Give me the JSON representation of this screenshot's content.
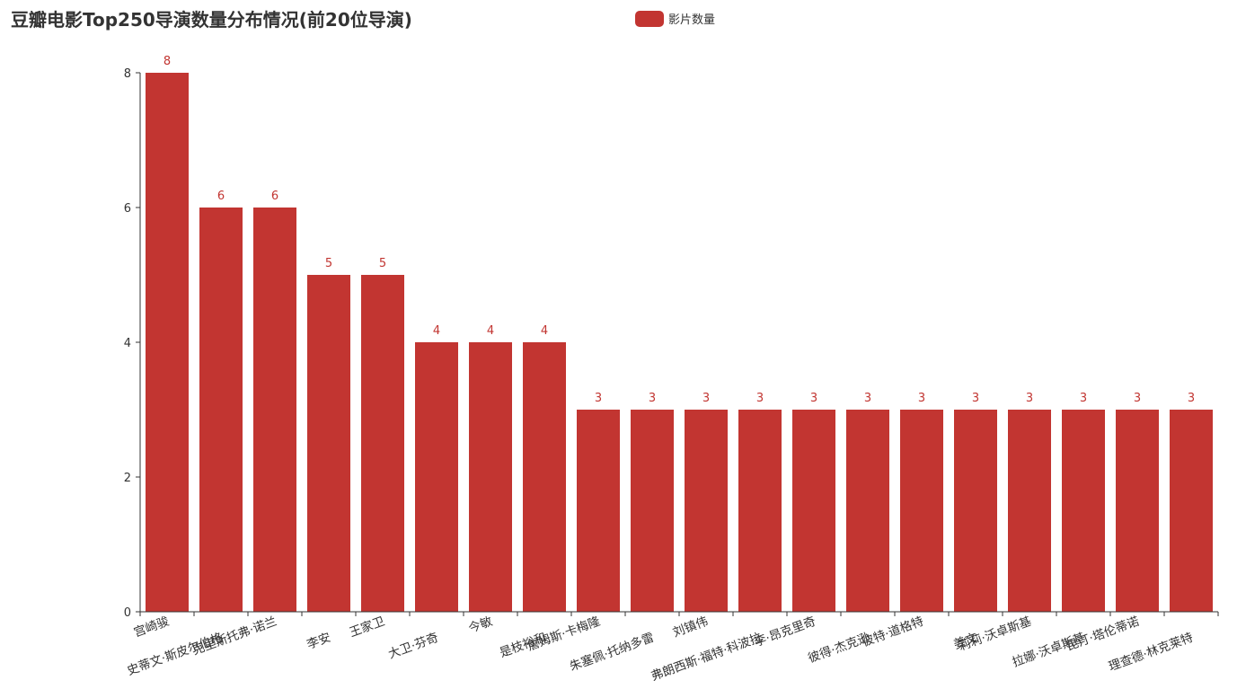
{
  "chart_data": {
    "type": "bar",
    "title": "豆瓣电影Top250导演数量分布情况(前20位导演)",
    "xlabel": "",
    "ylabel": "",
    "ylim": [
      0,
      8
    ],
    "yticks": [
      0,
      2,
      4,
      6,
      8
    ],
    "categories": [
      "宫崎骏",
      "史蒂文·斯皮尔伯格",
      "克里斯托弗·诺兰",
      "李安",
      "王家卫",
      "大卫·芬奇",
      "今敏",
      "是枝裕和",
      "詹姆斯·卡梅隆",
      "朱塞佩·托纳多雷",
      "刘镇伟",
      "弗朗西斯·福特·科波拉",
      "李·昂克里奇",
      "彼得·杰克逊",
      "彼特·道格特",
      "姜文",
      "莉莉·沃卓斯基",
      "拉娜·沃卓斯基",
      "昆汀·塔伦蒂诺",
      "理查德·林克莱特"
    ],
    "series": [
      {
        "name": "影片数量",
        "values": [
          8,
          6,
          6,
          5,
          5,
          4,
          4,
          4,
          3,
          3,
          3,
          3,
          3,
          3,
          3,
          3,
          3,
          3,
          3,
          3
        ],
        "color": "#c23531"
      }
    ],
    "data_labels": "top",
    "legend_position": "top",
    "grid": false
  }
}
